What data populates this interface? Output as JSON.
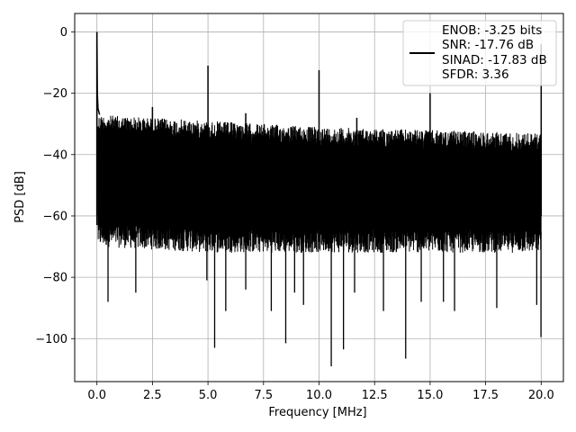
{
  "chart_data": {
    "type": "line",
    "xlabel": "Frequency [MHz]",
    "ylabel": "PSD [dB]",
    "xlim": [
      -1.0,
      21.0
    ],
    "ylim": [
      -114,
      6
    ],
    "xticks": [
      0.0,
      2.5,
      5.0,
      7.5,
      10.0,
      12.5,
      15.0,
      17.5,
      20.0
    ],
    "xtick_labels": [
      "0.0",
      "2.5",
      "5.0",
      "7.5",
      "10.0",
      "12.5",
      "15.0",
      "17.5",
      "20.0"
    ],
    "yticks": [
      0,
      -20,
      -40,
      -60,
      -80,
      -100
    ],
    "ytick_labels": [
      "0",
      "−20",
      "−40",
      "−60",
      "−80",
      "−100"
    ],
    "grid": true,
    "legend": {
      "placement": "top-right",
      "entries": [
        "ENOB: -3.25 bits",
        "SNR: -17.76 dB",
        "SINAD: -17.83 dB",
        "SFDR: 3.36"
      ]
    },
    "series": [
      {
        "color": "#000000",
        "noise_floor": {
          "x": [
            0.05,
            2.5,
            5.0,
            7.5,
            10.0,
            12.5,
            15.0,
            17.5,
            20.0
          ],
          "upper": [
            -27,
            -28,
            -29,
            -30,
            -31,
            -31.5,
            -32,
            -32.5,
            -33
          ],
          "lower": [
            -70,
            -71,
            -72,
            -72,
            -72,
            -72,
            -72,
            -72,
            -72
          ]
        },
        "peaks": [
          {
            "x": 0.0,
            "y": 0.0
          },
          {
            "x": 2.5,
            "y": -24.5
          },
          {
            "x": 5.0,
            "y": -11
          },
          {
            "x": 6.7,
            "y": -26.5
          },
          {
            "x": 10.0,
            "y": -12.5
          },
          {
            "x": 11.7,
            "y": -28
          },
          {
            "x": 15.0,
            "y": -20
          },
          {
            "x": 20.0,
            "y": -4
          }
        ],
        "dips": [
          {
            "x": 0.5,
            "y": -88
          },
          {
            "x": 1.75,
            "y": -85
          },
          {
            "x": 4.95,
            "y": -81
          },
          {
            "x": 5.3,
            "y": -103
          },
          {
            "x": 5.8,
            "y": -91
          },
          {
            "x": 6.7,
            "y": -84
          },
          {
            "x": 7.85,
            "y": -91
          },
          {
            "x": 8.5,
            "y": -101.5
          },
          {
            "x": 8.9,
            "y": -85
          },
          {
            "x": 9.3,
            "y": -89
          },
          {
            "x": 10.55,
            "y": -109
          },
          {
            "x": 11.1,
            "y": -103.5
          },
          {
            "x": 11.6,
            "y": -85
          },
          {
            "x": 12.9,
            "y": -91
          },
          {
            "x": 13.9,
            "y": -106.5
          },
          {
            "x": 14.6,
            "y": -88
          },
          {
            "x": 15.6,
            "y": -88
          },
          {
            "x": 16.1,
            "y": -91
          },
          {
            "x": 18.0,
            "y": -90
          },
          {
            "x": 19.8,
            "y": -89
          },
          {
            "x": 19.99,
            "y": -99.5
          }
        ]
      }
    ]
  }
}
